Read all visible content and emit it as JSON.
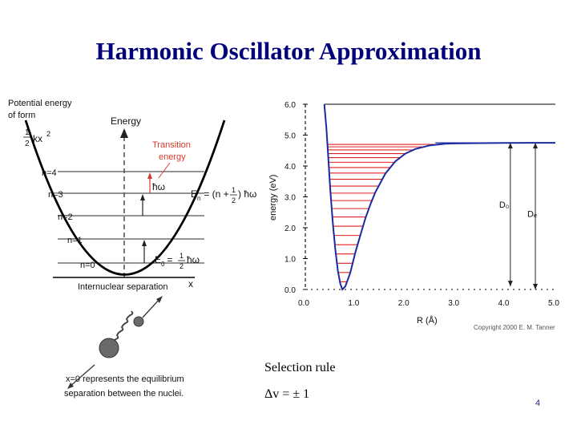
{
  "slide": {
    "title": "Harmonic Oscillator Approximation",
    "page_number": "4",
    "selection_rule_label": "Selection rule",
    "selection_rule_formula": "Δv = ± 1"
  },
  "left_diagram": {
    "potential_label_line1": "Potential energy",
    "potential_label_line2": "of form",
    "potential_formula_frac_num": "1",
    "potential_formula_frac_den": "2",
    "potential_formula_rest": "kx",
    "potential_formula_exp": "2",
    "energy_axis_label": "Energy",
    "transition_label_line1": "Transition",
    "transition_label_line2": "energy",
    "hw_label": "ħω",
    "levels": [
      "n=4",
      "n=3",
      "n=2",
      "n=1",
      "n=0"
    ],
    "en_formula_prefix": "E",
    "en_formula_sub": "n",
    "en_formula_mid": " = (n + ",
    "en_formula_frac_num": "1",
    "en_formula_frac_den": "2",
    "en_formula_suffix": ") ħω",
    "e0_prefix": "E",
    "e0_sub": "0",
    "e0_mid": " = ",
    "e0_frac_num": "1",
    "e0_frac_den": "2",
    "e0_suffix": "ħω",
    "x_axis_label": "Internuclear separation",
    "x_symbol": "x",
    "caption_line1": "x=0 represents the equilibrium",
    "caption_line2": "separation between the nuclei.",
    "colors": {
      "accent_red": "#d83a2a",
      "curve": "#000000"
    }
  },
  "chart_data": {
    "type": "line",
    "title": "",
    "xlabel": "R (Å)",
    "ylabel": "energy (eV)",
    "xlim": [
      0.0,
      5.0
    ],
    "ylim": [
      0.0,
      6.0
    ],
    "x_ticks": [
      "0.0",
      "1.0",
      "2.0",
      "3.0",
      "4.0",
      "5.0"
    ],
    "y_ticks": [
      "0.0",
      "1.0",
      "2.0",
      "3.0",
      "4.0",
      "5.0",
      "6.0"
    ],
    "series": [
      {
        "color": "#1c2aa0",
        "x": [
          0.38,
          0.42,
          0.45,
          0.5,
          0.55,
          0.6,
          0.65,
          0.7,
          0.74,
          0.8,
          0.9,
          1.0,
          1.1,
          1.2,
          1.3,
          1.4,
          1.6,
          1.8,
          2.0,
          2.2,
          2.5,
          2.8,
          3.0,
          3.5,
          4.0,
          4.5,
          5.0
        ],
        "y": [
          6.0,
          5.25,
          4.5,
          3.2,
          2.15,
          1.3,
          0.6,
          0.18,
          0.0,
          0.1,
          0.55,
          1.2,
          1.75,
          2.3,
          2.75,
          3.15,
          3.75,
          4.15,
          4.4,
          4.55,
          4.67,
          4.72,
          4.73,
          4.74,
          4.745,
          4.75,
          4.75
        ]
      }
    ],
    "energy_levels_eV": [
      0.25,
      0.55,
      0.85,
      1.15,
      1.45,
      1.75,
      2.05,
      2.35,
      2.62,
      2.88,
      3.12,
      3.35,
      3.57,
      3.77,
      3.95,
      4.12,
      4.27,
      4.4,
      4.52,
      4.62,
      4.7
    ],
    "annotations": [
      "D₀",
      "Dₑ"
    ],
    "D0_eV": 4.5,
    "De_eV": 4.75,
    "copyright": "Copyright 2000 E. M. Tanner",
    "colors": {
      "levels": "#e02020",
      "curve": "#1c2aa0",
      "axes": "#000000"
    }
  }
}
